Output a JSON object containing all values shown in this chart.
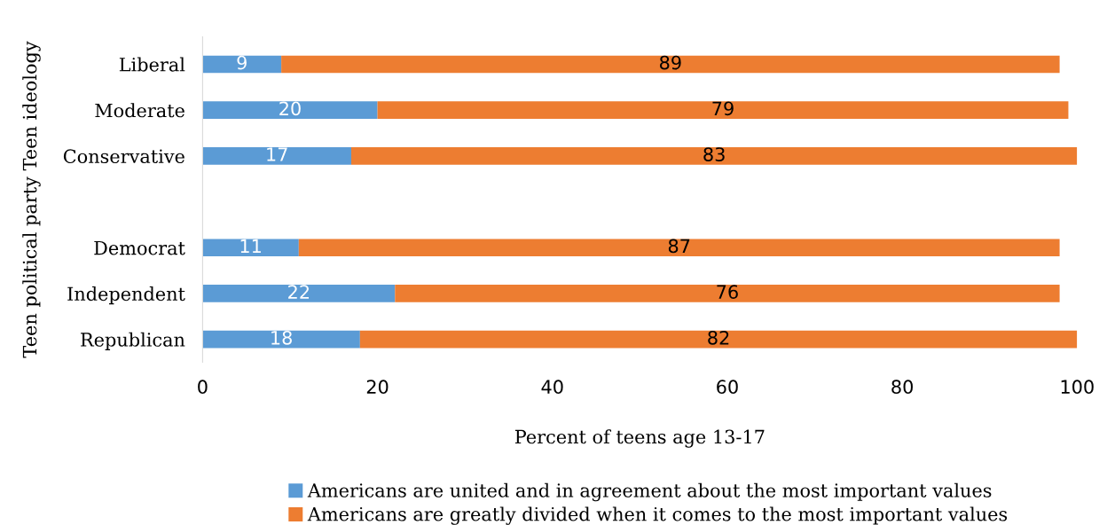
{
  "chart_data": {
    "type": "bar",
    "orientation": "horizontal",
    "stacked": true,
    "categories": [
      "Liberal",
      "Moderate",
      "Conservative",
      null,
      "Democrat",
      "Independent",
      "Republican"
    ],
    "series": [
      {
        "name": "Americans are united and in agreement about the most important values",
        "color": "#5b9bd5",
        "values": [
          9,
          20,
          17,
          null,
          11,
          22,
          18
        ]
      },
      {
        "name": "Americans are greatly divided when it comes to the most important values",
        "color": "#ed7d31",
        "values": [
          89,
          79,
          83,
          null,
          87,
          76,
          82
        ]
      }
    ],
    "xlabel": "Percent of teens age 13-17",
    "ylabel": "Teen political party Teen ideology",
    "xlim": [
      0,
      100
    ],
    "xticks": [
      0,
      20,
      40,
      60,
      80,
      100
    ],
    "data_labels": true,
    "grid": false,
    "legend": "bottom"
  }
}
